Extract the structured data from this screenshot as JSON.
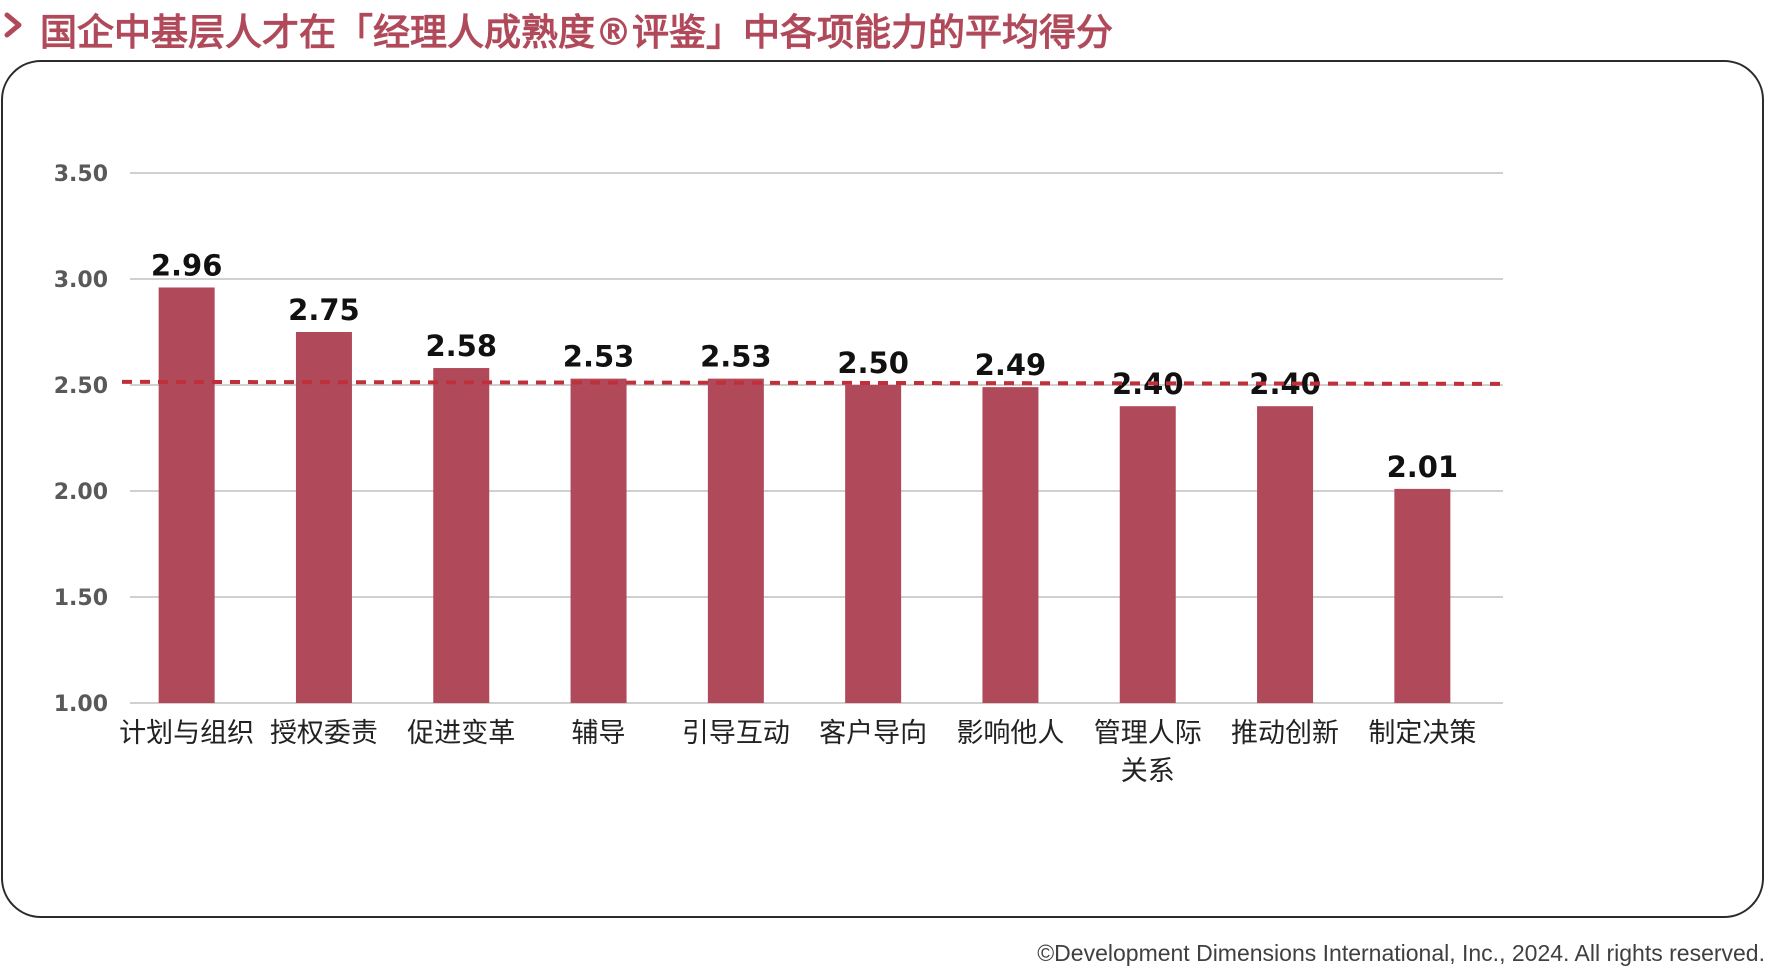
{
  "title": "国企中基层人才在「经理人成熟度®评鉴」中各项能力的平均得分",
  "footer": "©Development Dimensions International, Inc., 2024. All rights reserved.",
  "colors": {
    "accent": "#b04a5a",
    "bar": "#b04a5a",
    "average_line": "#c0303a",
    "grid": "#d0d0d0"
  },
  "chart_data": {
    "type": "bar",
    "title": "国企中基层人才在「经理人成熟度®评鉴」中各项能力的平均得分",
    "categories": [
      [
        "计划与组织"
      ],
      [
        "授权委责"
      ],
      [
        "促进变革"
      ],
      [
        "辅导"
      ],
      [
        "引导互动"
      ],
      [
        "客户导向"
      ],
      [
        "影响他人"
      ],
      [
        "管理人际",
        "关系"
      ],
      [
        "推动创新"
      ],
      [
        "制定决策"
      ]
    ],
    "values": [
      2.96,
      2.75,
      2.58,
      2.53,
      2.53,
      2.5,
      2.49,
      2.4,
      2.4,
      2.01
    ],
    "value_labels": [
      "2.96",
      "2.75",
      "2.58",
      "2.53",
      "2.53",
      "2.50",
      "2.49",
      "2.40",
      "2.40",
      "2.01"
    ],
    "yticks": [
      "1.00",
      "1.50",
      "2.00",
      "2.50",
      "3.00",
      "3.50"
    ],
    "ytick_values": [
      1.0,
      1.5,
      2.0,
      2.5,
      3.0,
      3.5
    ],
    "ylim": [
      1.0,
      3.5
    ],
    "reference_line": {
      "value": 2.51,
      "style": "dashed"
    },
    "xlabel": "",
    "ylabel": "",
    "grid": true,
    "legend": "none"
  }
}
